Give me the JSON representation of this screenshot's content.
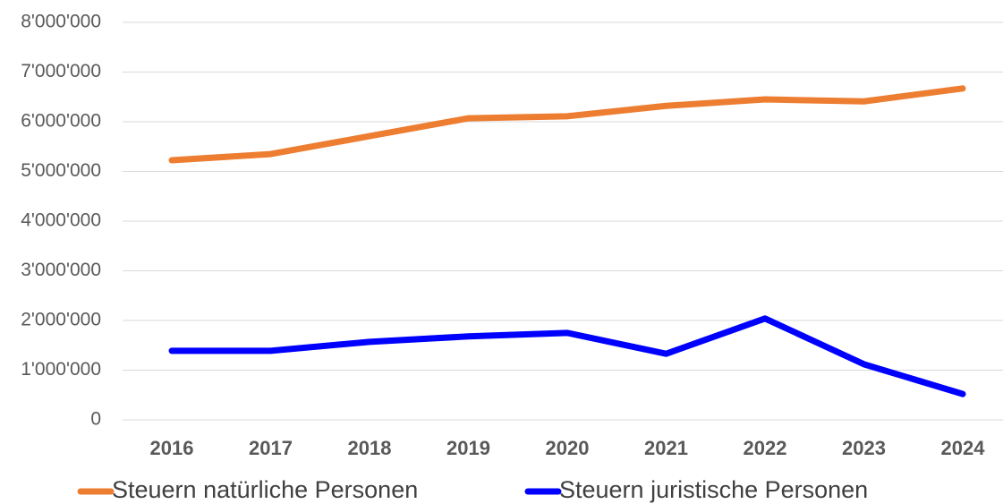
{
  "chart_data": {
    "type": "line",
    "categories": [
      "2016",
      "2017",
      "2018",
      "2019",
      "2020",
      "2021",
      "2022",
      "2023",
      "2024"
    ],
    "series": [
      {
        "name": "Steuern natürliche Personen",
        "color": "#ed7d31",
        "values": [
          5225000,
          5350000,
          5710000,
          6070000,
          6110000,
          6320000,
          6450000,
          6410000,
          6670000
        ]
      },
      {
        "name": "Steuern juristische Personen",
        "color": "#0000ff",
        "values": [
          1390000,
          1390000,
          1570000,
          1680000,
          1750000,
          1330000,
          2040000,
          1120000,
          520000
        ]
      }
    ],
    "ylim": [
      0,
      8000000
    ],
    "yticks": [
      0,
      {
        "value": 1000000,
        "label": "1'000'000"
      },
      {
        "value": 2000000,
        "label": "2'000'000"
      },
      {
        "value": 3000000,
        "label": "3'000'000"
      },
      {
        "value": 4000000,
        "label": "4'000'000"
      },
      {
        "value": 5000000,
        "label": "5'000'000"
      },
      {
        "value": 6000000,
        "label": "6'000'000"
      },
      {
        "value": 7000000,
        "label": "7'000'000"
      },
      {
        "value": 8000000,
        "label": "8'000'000"
      }
    ],
    "grid": true,
    "legend": "bottom"
  }
}
